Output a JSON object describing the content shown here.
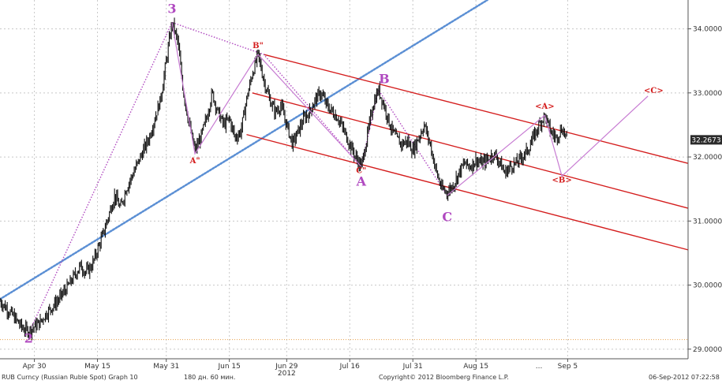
{
  "chart_data": {
    "type": "candlestick",
    "title": "",
    "xlabel": "",
    "ylabel": "",
    "ylim": [
      28.85,
      34.45
    ],
    "y_axis_position": "right",
    "grid": true,
    "x_ticks": [
      {
        "t": 6,
        "label": "Apr 30"
      },
      {
        "t": 17,
        "label": "May 15"
      },
      {
        "t": 29,
        "label": "May 31"
      },
      {
        "t": 40,
        "label": "Jun 15"
      },
      {
        "t": 50,
        "label": "Jun 29"
      },
      {
        "t": 61,
        "label": "Jul 16"
      },
      {
        "t": 72,
        "label": "Jul 31"
      },
      {
        "t": 83,
        "label": "Aug 15"
      },
      {
        "t": 99,
        "label": "Sep 5"
      }
    ],
    "x_extra_labels": [
      {
        "t": 50,
        "label": "2012"
      },
      {
        "t": 94,
        "label": "..."
      }
    ],
    "y_ticks": [
      29.0,
      30.0,
      31.0,
      32.0,
      33.0,
      34.0
    ],
    "y_tick_labels": [
      "29.0000",
      "30.0000",
      "31.0000",
      "32.0000",
      "33.0000",
      "34.0000"
    ],
    "last_price": 32.2673,
    "last_price_label": "32.2673",
    "price_path": [
      [
        0,
        29.75
      ],
      [
        2,
        29.55
      ],
      [
        4,
        29.32
      ],
      [
        5,
        29.28
      ],
      [
        6,
        29.35
      ],
      [
        7,
        29.42
      ],
      [
        8,
        29.55
      ],
      [
        10,
        29.75
      ],
      [
        12,
        30.0
      ],
      [
        14,
        30.3
      ],
      [
        15,
        30.2
      ],
      [
        16,
        30.3
      ],
      [
        18,
        30.8
      ],
      [
        20,
        31.4
      ],
      [
        21,
        31.2
      ],
      [
        22,
        31.5
      ],
      [
        24,
        31.9
      ],
      [
        26,
        32.3
      ],
      [
        28,
        32.9
      ],
      [
        29,
        33.5
      ],
      [
        30,
        34.1
      ],
      [
        31,
        33.8
      ],
      [
        32,
        33.0
      ],
      [
        33,
        32.5
      ],
      [
        34,
        32.1
      ],
      [
        35,
        32.3
      ],
      [
        36,
        32.6
      ],
      [
        37,
        33.0
      ],
      [
        38,
        32.7
      ],
      [
        39,
        32.5
      ],
      [
        40,
        32.6
      ],
      [
        41,
        32.3
      ],
      [
        42,
        32.4
      ],
      [
        43,
        32.9
      ],
      [
        44,
        33.3
      ],
      [
        45,
        33.6
      ],
      [
        46,
        33.2
      ],
      [
        47,
        32.9
      ],
      [
        48,
        32.7
      ],
      [
        49,
        32.8
      ],
      [
        50,
        32.5
      ],
      [
        51,
        32.2
      ],
      [
        52,
        32.4
      ],
      [
        53,
        32.6
      ],
      [
        54,
        32.7
      ],
      [
        55,
        32.9
      ],
      [
        56,
        33.0
      ],
      [
        57,
        32.8
      ],
      [
        58,
        32.7
      ],
      [
        59,
        32.6
      ],
      [
        60,
        32.4
      ],
      [
        61,
        32.2
      ],
      [
        62,
        32.0
      ],
      [
        63,
        31.85
      ],
      [
        64,
        32.3
      ],
      [
        65,
        32.8
      ],
      [
        66,
        33.05
      ],
      [
        67,
        32.8
      ],
      [
        68,
        32.5
      ],
      [
        69,
        32.3
      ],
      [
        70,
        32.2
      ],
      [
        71,
        32.25
      ],
      [
        72,
        32.1
      ],
      [
        73,
        32.3
      ],
      [
        74,
        32.5
      ],
      [
        75,
        32.2
      ],
      [
        76,
        31.8
      ],
      [
        77,
        31.5
      ],
      [
        78,
        31.45
      ],
      [
        79,
        31.55
      ],
      [
        80,
        31.75
      ],
      [
        81,
        31.9
      ],
      [
        82,
        31.85
      ],
      [
        83,
        31.95
      ],
      [
        84,
        31.9
      ],
      [
        85,
        31.95
      ],
      [
        86,
        32.05
      ],
      [
        87,
        31.95
      ],
      [
        88,
        31.75
      ],
      [
        89,
        31.85
      ],
      [
        90,
        31.9
      ],
      [
        91,
        32.0
      ],
      [
        92,
        32.1
      ],
      [
        93,
        32.3
      ],
      [
        94,
        32.5
      ],
      [
        95,
        32.65
      ],
      [
        96,
        32.4
      ],
      [
        97,
        32.3
      ],
      [
        98,
        32.45
      ],
      [
        99,
        32.27
      ]
    ],
    "support_line_dotted": {
      "from": [
        0,
        29.78
      ],
      "to": [
        85,
        34.45
      ]
    },
    "horizontal_level": 29.15,
    "channel": {
      "upper": {
        "from": [
          46,
          33.6
        ],
        "to": [
          120,
          31.9
        ]
      },
      "middle": {
        "from": [
          44,
          33.0
        ],
        "to": [
          120,
          31.2
        ]
      },
      "lower": {
        "from": [
          43,
          32.35
        ],
        "to": [
          120,
          30.55
        ]
      }
    },
    "wave_dotted_path": [
      [
        5,
        29.25
      ],
      [
        30,
        34.1
      ],
      [
        46,
        33.6
      ],
      [
        63,
        31.85
      ],
      [
        66,
        33.05
      ],
      [
        78,
        31.4
      ]
    ],
    "wave_solid_segments": [
      [
        [
          30,
          34.1
        ],
        [
          34,
          32.05
        ],
        [
          45,
          33.6
        ]
      ],
      [
        [
          45,
          33.6
        ],
        [
          63,
          31.85
        ]
      ],
      [
        [
          78,
          31.4
        ],
        [
          95,
          32.65
        ],
        [
          98,
          31.7
        ],
        [
          113,
          32.95
        ]
      ]
    ],
    "wave_labels": [
      {
        "t": 5,
        "v": 29.1,
        "text": "2",
        "style": "purple"
      },
      {
        "t": 30,
        "v": 34.25,
        "text": "3",
        "style": "purple"
      },
      {
        "t": 34,
        "v": 31.9,
        "text": "A\"",
        "style": "red"
      },
      {
        "t": 45,
        "v": 33.7,
        "text": "B\"",
        "style": "red"
      },
      {
        "t": 63,
        "v": 31.75,
        "text": "C\"",
        "style": "red"
      },
      {
        "t": 63,
        "v": 31.55,
        "text": "A",
        "style": "purple"
      },
      {
        "t": 67,
        "v": 33.15,
        "text": "B",
        "style": "purple"
      },
      {
        "t": 78,
        "v": 31.0,
        "text": "C",
        "style": "purple"
      },
      {
        "t": 95,
        "v": 32.75,
        "text": "<A>",
        "style": "red"
      },
      {
        "t": 98,
        "v": 31.6,
        "text": "<B>",
        "style": "red"
      },
      {
        "t": 114,
        "v": 33.0,
        "text": "<C>",
        "style": "red"
      }
    ],
    "colors": {
      "price": "#111111",
      "support": "#5b8fd4",
      "channel": "#d41d1d",
      "wave_dotted": "#b049c0",
      "wave_solid": "#c77bd2",
      "level": "#e8a04a",
      "grid": "#c8c8c8"
    }
  },
  "footer": {
    "ticker": "RUB Curncy (Russian Ruble Spot) Graph 10",
    "period": "180 дн. 60 мин.",
    "copyright": "Copyright© 2012 Bloomberg Finance L.P.",
    "timestamp": "06-Sep-2012 07:22:58"
  }
}
